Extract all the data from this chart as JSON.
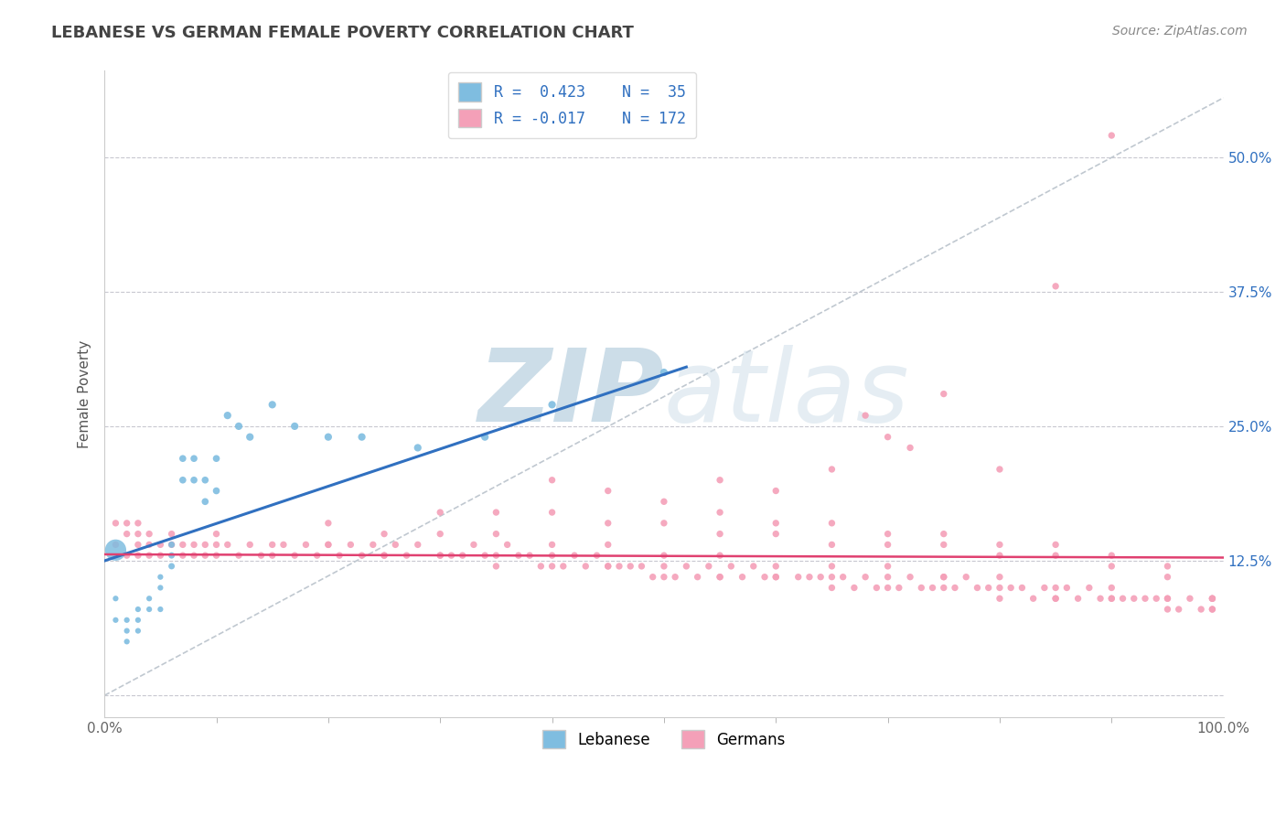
{
  "title": "LEBANESE VS GERMAN FEMALE POVERTY CORRELATION CHART",
  "source": "Source: ZipAtlas.com",
  "ylabel": "Female Poverty",
  "xlim": [
    0.0,
    1.0
  ],
  "ylim": [
    -0.02,
    0.58
  ],
  "yticks": [
    0.0,
    0.125,
    0.25,
    0.375,
    0.5
  ],
  "ytick_labels": [
    "",
    "12.5%",
    "25.0%",
    "37.5%",
    "50.0%"
  ],
  "xticks": [
    0.0,
    1.0
  ],
  "xtick_labels": [
    "0.0%",
    "100.0%"
  ],
  "blue_color": "#7fbde0",
  "pink_color": "#f4a0b8",
  "blue_line_color": "#3070c0",
  "pink_line_color": "#e04070",
  "dashed_line_color": "#c0c8d0",
  "grid_color": "#c8c8d0",
  "watermark_color": "#ccdde8",
  "watermark_zip": "ZIP",
  "watermark_atlas": "atlas",
  "blue_scatter_x": [
    0.01,
    0.01,
    0.02,
    0.02,
    0.02,
    0.03,
    0.03,
    0.03,
    0.04,
    0.04,
    0.05,
    0.05,
    0.05,
    0.06,
    0.06,
    0.06,
    0.07,
    0.07,
    0.08,
    0.08,
    0.09,
    0.09,
    0.1,
    0.1,
    0.11,
    0.12,
    0.13,
    0.15,
    0.17,
    0.2,
    0.23,
    0.28,
    0.34,
    0.4,
    0.5
  ],
  "blue_scatter_y": [
    0.09,
    0.07,
    0.07,
    0.06,
    0.05,
    0.08,
    0.07,
    0.06,
    0.09,
    0.08,
    0.11,
    0.1,
    0.08,
    0.14,
    0.13,
    0.12,
    0.22,
    0.2,
    0.22,
    0.2,
    0.2,
    0.18,
    0.22,
    0.19,
    0.26,
    0.25,
    0.24,
    0.27,
    0.25,
    0.24,
    0.24,
    0.23,
    0.24,
    0.27,
    0.3
  ],
  "blue_scatter_size": [
    20,
    20,
    20,
    20,
    20,
    20,
    20,
    20,
    20,
    20,
    20,
    20,
    20,
    25,
    25,
    25,
    30,
    30,
    30,
    30,
    30,
    30,
    30,
    30,
    35,
    35,
    35,
    35,
    35,
    35,
    35,
    35,
    35,
    35,
    35
  ],
  "blue_big_x": [
    0.01
  ],
  "blue_big_y": [
    0.135
  ],
  "blue_big_size": [
    280
  ],
  "pink_scatter_x": [
    0.01,
    0.01,
    0.02,
    0.02,
    0.02,
    0.03,
    0.03,
    0.03,
    0.03,
    0.04,
    0.04,
    0.04,
    0.05,
    0.05,
    0.06,
    0.06,
    0.07,
    0.07,
    0.08,
    0.08,
    0.09,
    0.09,
    0.1,
    0.1,
    0.11,
    0.12,
    0.13,
    0.14,
    0.15,
    0.16,
    0.17,
    0.18,
    0.19,
    0.2,
    0.21,
    0.22,
    0.23,
    0.24,
    0.25,
    0.26,
    0.27,
    0.28,
    0.3,
    0.31,
    0.32,
    0.33,
    0.34,
    0.35,
    0.36,
    0.37,
    0.38,
    0.39,
    0.4,
    0.41,
    0.42,
    0.43,
    0.44,
    0.45,
    0.46,
    0.47,
    0.48,
    0.49,
    0.5,
    0.51,
    0.52,
    0.53,
    0.54,
    0.55,
    0.56,
    0.57,
    0.58,
    0.59,
    0.6,
    0.62,
    0.63,
    0.64,
    0.65,
    0.66,
    0.67,
    0.68,
    0.69,
    0.7,
    0.71,
    0.72,
    0.73,
    0.74,
    0.75,
    0.76,
    0.77,
    0.78,
    0.79,
    0.8,
    0.81,
    0.82,
    0.83,
    0.84,
    0.85,
    0.86,
    0.87,
    0.88,
    0.89,
    0.9,
    0.91,
    0.92,
    0.93,
    0.94,
    0.95,
    0.96,
    0.97,
    0.98,
    0.99,
    0.99,
    0.68,
    0.72,
    0.8,
    0.85,
    0.9,
    0.55,
    0.6,
    0.65,
    0.7,
    0.75,
    0.4,
    0.45,
    0.5,
    0.55,
    0.6,
    0.65,
    0.7,
    0.75,
    0.8,
    0.85,
    0.9,
    0.95,
    0.99,
    0.3,
    0.35,
    0.4,
    0.45,
    0.5,
    0.55,
    0.6,
    0.65,
    0.7,
    0.75,
    0.8,
    0.85,
    0.9,
    0.95,
    0.99,
    0.2,
    0.25,
    0.3,
    0.35,
    0.4,
    0.45,
    0.5,
    0.55,
    0.6,
    0.65,
    0.7,
    0.75,
    0.8,
    0.85,
    0.9,
    0.95,
    0.99,
    0.1,
    0.15,
    0.2,
    0.25,
    0.3,
    0.35,
    0.4,
    0.45,
    0.5,
    0.55,
    0.6,
    0.65,
    0.7,
    0.75,
    0.8,
    0.85,
    0.9,
    0.95
  ],
  "pink_scatter_y": [
    0.16,
    0.14,
    0.15,
    0.13,
    0.16,
    0.14,
    0.15,
    0.13,
    0.16,
    0.14,
    0.13,
    0.15,
    0.14,
    0.13,
    0.15,
    0.14,
    0.14,
    0.13,
    0.14,
    0.13,
    0.14,
    0.13,
    0.14,
    0.13,
    0.14,
    0.13,
    0.14,
    0.13,
    0.13,
    0.14,
    0.13,
    0.14,
    0.13,
    0.14,
    0.13,
    0.14,
    0.13,
    0.14,
    0.13,
    0.14,
    0.13,
    0.14,
    0.13,
    0.13,
    0.13,
    0.14,
    0.13,
    0.13,
    0.14,
    0.13,
    0.13,
    0.12,
    0.13,
    0.12,
    0.13,
    0.12,
    0.13,
    0.12,
    0.12,
    0.12,
    0.12,
    0.11,
    0.12,
    0.11,
    0.12,
    0.11,
    0.12,
    0.11,
    0.12,
    0.11,
    0.12,
    0.11,
    0.11,
    0.11,
    0.11,
    0.11,
    0.11,
    0.11,
    0.1,
    0.11,
    0.1,
    0.11,
    0.1,
    0.11,
    0.1,
    0.1,
    0.11,
    0.1,
    0.11,
    0.1,
    0.1,
    0.1,
    0.1,
    0.1,
    0.09,
    0.1,
    0.09,
    0.1,
    0.09,
    0.1,
    0.09,
    0.09,
    0.09,
    0.09,
    0.09,
    0.09,
    0.09,
    0.08,
    0.09,
    0.08,
    0.09,
    0.08,
    0.26,
    0.23,
    0.21,
    0.38,
    0.52,
    0.2,
    0.19,
    0.21,
    0.24,
    0.28,
    0.2,
    0.19,
    0.18,
    0.17,
    0.16,
    0.16,
    0.15,
    0.15,
    0.14,
    0.14,
    0.13,
    0.12,
    0.08,
    0.17,
    0.17,
    0.17,
    0.16,
    0.16,
    0.15,
    0.15,
    0.14,
    0.14,
    0.14,
    0.13,
    0.13,
    0.12,
    0.11,
    0.09,
    0.16,
    0.15,
    0.15,
    0.15,
    0.14,
    0.14,
    0.13,
    0.13,
    0.12,
    0.12,
    0.12,
    0.11,
    0.11,
    0.1,
    0.1,
    0.09,
    0.09,
    0.15,
    0.14,
    0.14,
    0.13,
    0.13,
    0.12,
    0.12,
    0.12,
    0.11,
    0.11,
    0.11,
    0.1,
    0.1,
    0.1,
    0.09,
    0.09,
    0.09,
    0.08
  ],
  "blue_line_x": [
    0.0,
    0.52
  ],
  "blue_line_y": [
    0.125,
    0.305
  ],
  "pink_line_x": [
    0.0,
    1.0
  ],
  "pink_line_y": [
    0.131,
    0.128
  ],
  "diag_line_x": [
    0.0,
    1.0
  ],
  "diag_line_y": [
    0.0,
    0.555
  ]
}
